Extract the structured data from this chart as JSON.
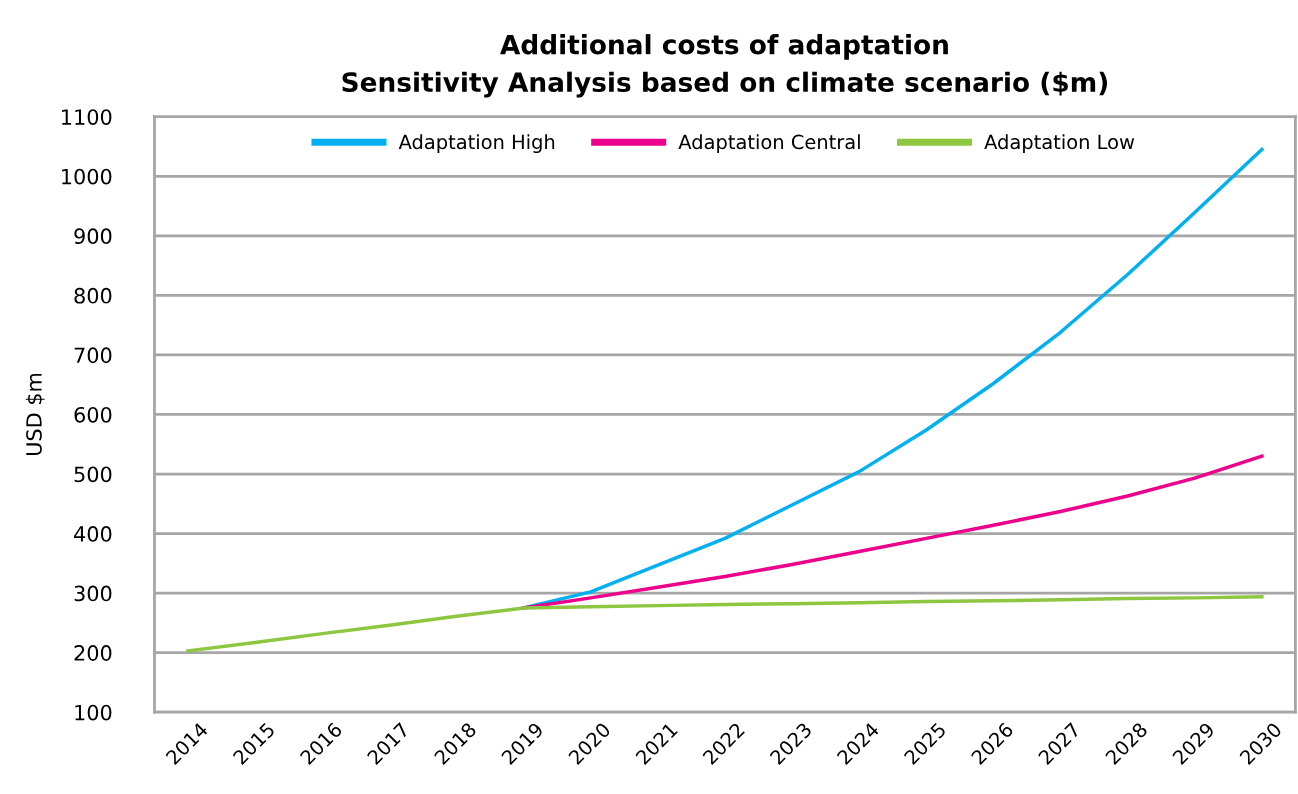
{
  "chart_data": {
    "type": "line",
    "title": "Additional costs of adaptation\nSensitivity Analysis based on climate scenario ($m)",
    "ylabel": "USD $m",
    "categories": [
      "2014",
      "2015",
      "2016",
      "2017",
      "2018",
      "2019",
      "2020",
      "2021",
      "2022",
      "2023",
      "2024",
      "2025",
      "2026",
      "2027",
      "2028",
      "2029",
      "2030"
    ],
    "series": [
      {
        "name": "Adaptation High",
        "color": "#00b0f0",
        "values": [
          null,
          null,
          null,
          null,
          null,
          275,
          302,
          347,
          392,
          448,
          504,
          574,
          652,
          738,
          835,
          939,
          1045
        ]
      },
      {
        "name": "Adaptation Central",
        "color": "#ec008c",
        "values": [
          null,
          null,
          null,
          null,
          null,
          275,
          292,
          310,
          328,
          348,
          370,
          392,
          414,
          437,
          463,
          493,
          530
        ]
      },
      {
        "name": "Adaptation Low",
        "color": "#8dc63f",
        "values": [
          203,
          217,
          232,
          246,
          261,
          275,
          277,
          279,
          281,
          282,
          284,
          286,
          287,
          289,
          291,
          292,
          294
        ]
      }
    ],
    "ylim": [
      100,
      1100
    ],
    "yticks": [
      100,
      200,
      300,
      400,
      500,
      600,
      700,
      800,
      900,
      1000,
      1100
    ],
    "grid": "y",
    "legend": "top",
    "marker": "none",
    "line_style": "solid"
  }
}
